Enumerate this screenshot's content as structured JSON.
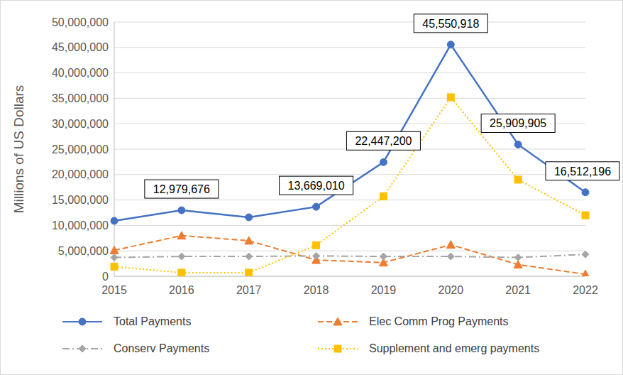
{
  "chart_data": {
    "type": "line",
    "y_label": "Millions of US Dollars",
    "categories": [
      "2015",
      "2016",
      "2017",
      "2018",
      "2019",
      "2020",
      "2021",
      "2022"
    ],
    "series": [
      {
        "name": "Total Payments",
        "color": "#4472C4",
        "marker": "circle",
        "line_style": "solid",
        "values": [
          10900000,
          12979676,
          11600000,
          13669010,
          22447200,
          45550918,
          25909905,
          16512196
        ],
        "data_labels": true,
        "value_labels": [
          null,
          "12,979,676",
          null,
          "13,669,010",
          "22,447,200",
          "45,550,918",
          "25,909,905",
          "16,512,196"
        ]
      },
      {
        "name": "Elec Comm Prog Payments",
        "color": "#ED7D31",
        "marker": "triangle",
        "line_style": "dashed",
        "values": [
          5100000,
          8000000,
          7000000,
          3200000,
          2700000,
          6200000,
          2300000,
          400000
        ]
      },
      {
        "name": "Conserv Payments",
        "color": "#A5A5A5",
        "marker": "diamond",
        "line_style": "dashdot",
        "values": [
          3700000,
          3900000,
          3900000,
          4000000,
          3900000,
          3900000,
          3700000,
          4300000
        ]
      },
      {
        "name": "Supplement and emerg payments",
        "color": "#FFC000",
        "marker": "square",
        "line_style": "dotted",
        "values": [
          1900000,
          700000,
          700000,
          6100000,
          15700000,
          35200000,
          19000000,
          12000000
        ]
      }
    ],
    "ylim": [
      0,
      50000000
    ],
    "yticks": [
      0,
      {
        "value": 5000000,
        "label": "5,000,000"
      },
      {
        "value": 10000000,
        "label": "10,000,000"
      },
      {
        "value": 15000000,
        "label": "15,000,000"
      },
      {
        "value": 20000000,
        "label": "20,000,000"
      },
      {
        "value": 25000000,
        "label": "25,000,000"
      },
      {
        "value": 30000000,
        "label": "30,000,000"
      },
      {
        "value": 35000000,
        "label": "35,000,000"
      },
      {
        "value": 40000000,
        "label": "40,000,000"
      },
      {
        "value": 45000000,
        "label": "45,000,000"
      },
      {
        "value": 50000000,
        "label": "50,000,000"
      }
    ],
    "grid": true,
    "legend": "bottom"
  }
}
